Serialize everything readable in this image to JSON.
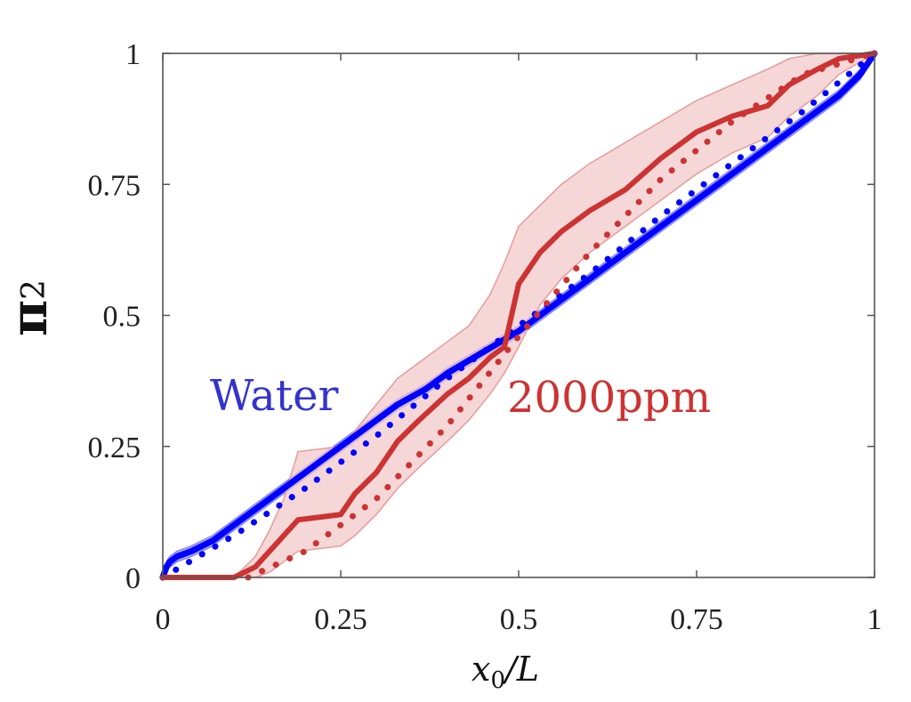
{
  "chart_data": {
    "type": "line",
    "title": "",
    "xlabel": "x_0/L",
    "ylabel": "π_2",
    "xlabel_parts": {
      "main": "x",
      "sub": "0",
      "rest": "/L"
    },
    "ylabel_parts": {
      "main": "π",
      "sub": "2"
    },
    "xlim": [
      0,
      1
    ],
    "ylim": [
      0,
      1
    ],
    "xticks": [
      0,
      0.25,
      0.5,
      0.75,
      1
    ],
    "yticks": [
      0,
      0.25,
      0.5,
      0.75,
      1
    ],
    "xtick_labels": [
      "0",
      "0.25",
      "0.5",
      "0.75",
      "1"
    ],
    "ytick_labels": [
      "0",
      "0.25",
      "0.5",
      "0.75",
      "1"
    ],
    "grid": false,
    "legend": "none",
    "annotations": [
      {
        "text": "Water",
        "color": "#3333cc",
        "x": 0.07,
        "y": 0.36
      },
      {
        "text": "2000ppm",
        "color": "#cc3333",
        "x": 0.49,
        "y": 0.35
      }
    ],
    "colors": {
      "water": "#0000ff",
      "water_band": "#8080ff",
      "ppm": "#cc3333",
      "ppm_band": "#f2c6c6"
    },
    "series": [
      {
        "name": "Water mean",
        "style": "solid",
        "color": "#0000ff",
        "x": [
          0,
          0.005,
          0.01,
          0.02,
          0.04,
          0.07,
          0.1,
          0.13,
          0.17,
          0.2,
          0.25,
          0.3,
          0.33,
          0.37,
          0.4,
          0.45,
          0.5,
          0.55,
          0.6,
          0.65,
          0.7,
          0.75,
          0.8,
          0.85,
          0.9,
          0.95,
          0.98,
          1
        ],
        "y": [
          0,
          0.02,
          0.03,
          0.04,
          0.05,
          0.07,
          0.1,
          0.13,
          0.17,
          0.2,
          0.25,
          0.3,
          0.33,
          0.36,
          0.39,
          0.43,
          0.47,
          0.52,
          0.57,
          0.62,
          0.67,
          0.72,
          0.77,
          0.82,
          0.87,
          0.92,
          0.96,
          1
        ],
        "band_low": [
          0,
          0.01,
          0.02,
          0.03,
          0.04,
          0.06,
          0.09,
          0.12,
          0.16,
          0.19,
          0.24,
          0.29,
          0.32,
          0.35,
          0.38,
          0.42,
          0.46,
          0.51,
          0.56,
          0.61,
          0.66,
          0.71,
          0.76,
          0.81,
          0.86,
          0.91,
          0.95,
          1
        ],
        "band_high": [
          0,
          0.03,
          0.04,
          0.05,
          0.06,
          0.08,
          0.11,
          0.14,
          0.18,
          0.21,
          0.26,
          0.31,
          0.34,
          0.37,
          0.4,
          0.44,
          0.48,
          0.53,
          0.58,
          0.63,
          0.68,
          0.73,
          0.78,
          0.83,
          0.88,
          0.93,
          0.97,
          1
        ]
      },
      {
        "name": "Water reference",
        "style": "dotted",
        "color": "#0000ff",
        "x": [
          0,
          0.1,
          0.2,
          0.3,
          0.4,
          0.5,
          0.6,
          0.7,
          0.8,
          0.9,
          1
        ],
        "y": [
          0,
          0.08,
          0.17,
          0.27,
          0.38,
          0.48,
          0.58,
          0.69,
          0.79,
          0.89,
          1
        ]
      },
      {
        "name": "2000ppm mean",
        "style": "solid",
        "color": "#cc3333",
        "x": [
          0,
          0.1,
          0.13,
          0.15,
          0.17,
          0.19,
          0.25,
          0.27,
          0.3,
          0.33,
          0.36,
          0.4,
          0.43,
          0.46,
          0.48,
          0.5,
          0.53,
          0.56,
          0.6,
          0.65,
          0.7,
          0.75,
          0.8,
          0.85,
          0.88,
          0.92,
          0.95,
          1
        ],
        "y": [
          0,
          0,
          0.02,
          0.05,
          0.08,
          0.11,
          0.12,
          0.16,
          0.2,
          0.26,
          0.3,
          0.35,
          0.38,
          0.42,
          0.44,
          0.56,
          0.62,
          0.66,
          0.7,
          0.74,
          0.8,
          0.85,
          0.88,
          0.9,
          0.94,
          0.97,
          0.99,
          1
        ],
        "band_low": [
          0,
          0,
          0,
          0.01,
          0.03,
          0.05,
          0.06,
          0.08,
          0.12,
          0.17,
          0.21,
          0.26,
          0.3,
          0.35,
          0.39,
          0.44,
          0.52,
          0.57,
          0.62,
          0.67,
          0.72,
          0.77,
          0.81,
          0.84,
          0.88,
          0.92,
          0.96,
          1
        ],
        "band_high": [
          0,
          0,
          0.04,
          0.09,
          0.15,
          0.24,
          0.25,
          0.28,
          0.33,
          0.38,
          0.41,
          0.45,
          0.48,
          0.54,
          0.6,
          0.67,
          0.71,
          0.75,
          0.79,
          0.83,
          0.87,
          0.91,
          0.94,
          0.97,
          0.99,
          1,
          1,
          1
        ]
      },
      {
        "name": "2000ppm reference",
        "style": "dotted",
        "color": "#cc3333",
        "x": [
          0.12,
          0.2,
          0.3,
          0.4,
          0.5,
          0.6,
          0.7,
          0.8,
          0.9,
          1
        ],
        "y": [
          0,
          0.05,
          0.15,
          0.29,
          0.46,
          0.62,
          0.76,
          0.87,
          0.96,
          1
        ]
      }
    ]
  }
}
